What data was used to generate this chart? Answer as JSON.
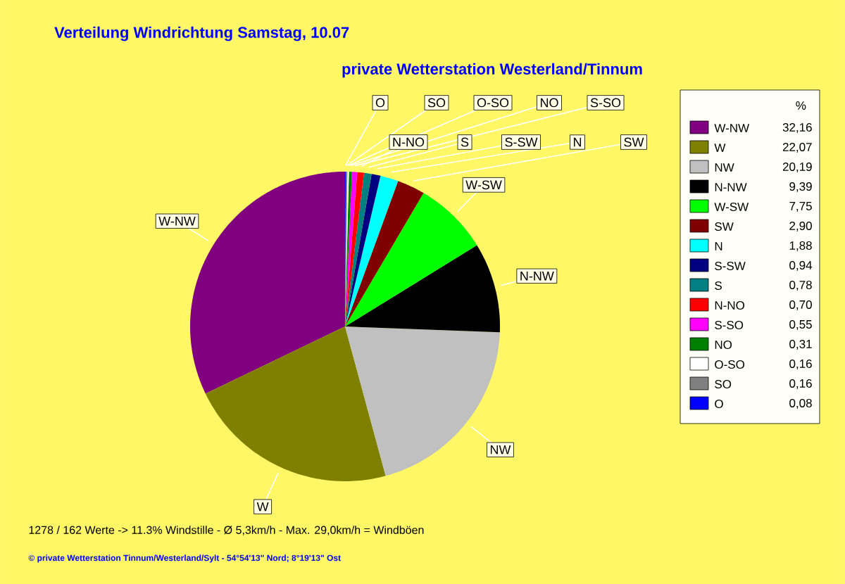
{
  "chart_data": {
    "type": "pie",
    "title": "Verteilung Windrichtung   Samstag, 10.07",
    "subtitle": "private Wetterstation Westerland/Tinnum",
    "legend_title": "%",
    "legend": "right",
    "categories": [
      "W-NW",
      "W",
      "NW",
      "N-NW",
      "W-SW",
      "SW",
      "N",
      "S-SW",
      "S",
      "N-NO",
      "S-SO",
      "NO",
      "O-SO",
      "SO",
      "O"
    ],
    "values": [
      32.16,
      22.07,
      20.19,
      9.39,
      7.75,
      2.9,
      1.88,
      0.94,
      0.78,
      0.7,
      0.55,
      0.31,
      0.16,
      0.16,
      0.08
    ],
    "value_labels": [
      "32,16",
      "22,07",
      "20,19",
      "9,39",
      "7,75",
      "2,90",
      "1,88",
      "0,94",
      "0,78",
      "0,70",
      "0,55",
      "0,31",
      "0,16",
      "0,16",
      "0,08"
    ],
    "colors": [
      "#800080",
      "#808000",
      "#c0c0c0",
      "#000000",
      "#00ff00",
      "#800000",
      "#00ffff",
      "#000080",
      "#008080",
      "#ff0000",
      "#ff00ff",
      "#008000",
      "#ffffff",
      "#808080",
      "#0000ff"
    ],
    "annotations": [
      "1278 / 162 Werte  -> 11.3% Windstille   -   Ø 5,3km/h  -  Max. 29,0km/h = Windböen",
      "© private Wetterstation Tinnum/Westerland/Sylt  -  54°54'13\" Nord; 8°19'13\" Ost"
    ]
  }
}
